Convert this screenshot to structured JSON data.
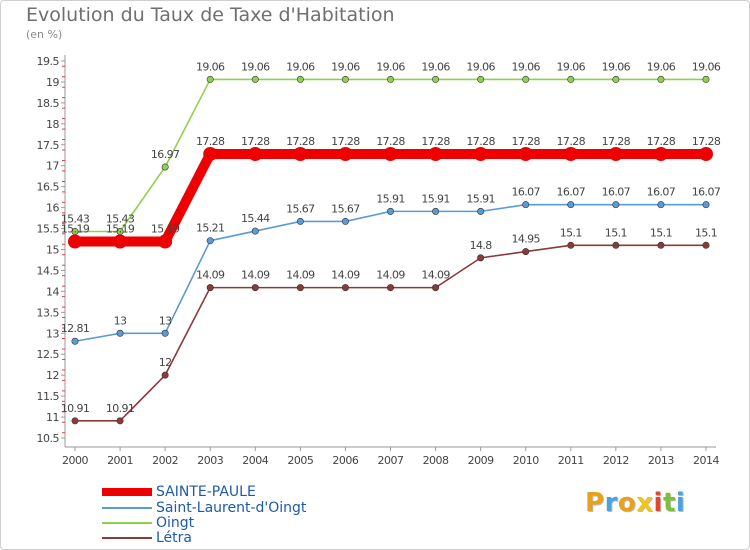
{
  "title": "Evolution du Taux de Taxe d'Habitation",
  "subtitle": "(en %)",
  "logo": {
    "text": "Proxiti",
    "letter_colors": [
      "#e8a21a",
      "#4aa3df",
      "#e8a21a",
      "#f0c419",
      "#e2462d",
      "#7bbf3b",
      "#4aa3df"
    ]
  },
  "chart_data": {
    "type": "line",
    "x": [
      "2000",
      "2001",
      "2002",
      "2003",
      "2004",
      "2005",
      "2006",
      "2007",
      "2008",
      "2009",
      "2010",
      "2011",
      "2012",
      "2013",
      "2014"
    ],
    "yticks": [
      "10.5",
      "11",
      "11.5",
      "12",
      "12.5",
      "13",
      "13.5",
      "14",
      "14.5",
      "15",
      "15.5",
      "16",
      "16.5",
      "17",
      "17.5",
      "18",
      "18.5",
      "19",
      "19.5"
    ],
    "ylim": [
      10.5,
      19.5
    ],
    "grid": false,
    "legend_position": "bottom-left",
    "series": [
      {
        "name": "SAINTE-PAULE",
        "color": "#ee0000",
        "values": [
          15.19,
          15.19,
          15.19,
          17.28,
          17.28,
          17.28,
          17.28,
          17.28,
          17.28,
          17.28,
          17.28,
          17.28,
          17.28,
          17.28,
          17.28
        ],
        "labels": [
          "15.19",
          "15.19",
          "15.19",
          "17.28",
          "17.28",
          "17.28",
          "17.28",
          "17.28",
          "17.28",
          "17.28",
          "17.28",
          "17.28",
          "17.28",
          "17.28",
          "17.28"
        ]
      },
      {
        "name": "Saint-Laurent-d'Oingt",
        "color": "#5b9bd5",
        "values": [
          12.81,
          13,
          13,
          15.21,
          15.44,
          15.67,
          15.67,
          15.91,
          15.91,
          15.91,
          16.07,
          16.07,
          16.07,
          16.07,
          16.07
        ],
        "labels": [
          "12.81",
          "13",
          "13",
          "15.21",
          "15.44",
          "15.67",
          "15.67",
          "15.91",
          "15.91",
          "15.91",
          "16.07",
          "16.07",
          "16.07",
          "16.07",
          "16.07"
        ]
      },
      {
        "name": "Oingt",
        "color": "#8fd14f",
        "values": [
          15.43,
          15.43,
          16.97,
          19.06,
          19.06,
          19.06,
          19.06,
          19.06,
          19.06,
          19.06,
          19.06,
          19.06,
          19.06,
          19.06,
          19.06
        ],
        "labels": [
          "15.43",
          "15.43",
          "16.97",
          "19.06",
          "19.06",
          "19.06",
          "19.06",
          "19.06",
          "19.06",
          "19.06",
          "19.06",
          "19.06",
          "19.06",
          "19.06",
          "19.06"
        ]
      },
      {
        "name": "Létra",
        "color": "#8b3a3a",
        "values": [
          10.91,
          10.91,
          12,
          14.09,
          14.09,
          14.09,
          14.09,
          14.09,
          14.09,
          14.8,
          14.95,
          15.1,
          15.1,
          15.1,
          15.1
        ],
        "labels": [
          "10.91",
          "10.91",
          "12",
          "14.09",
          "14.09",
          "14.09",
          "14.09",
          "14.09",
          "14.09",
          "14.8",
          "14.95",
          "15.1",
          "15.1",
          "15.1",
          "15.1"
        ]
      }
    ]
  }
}
